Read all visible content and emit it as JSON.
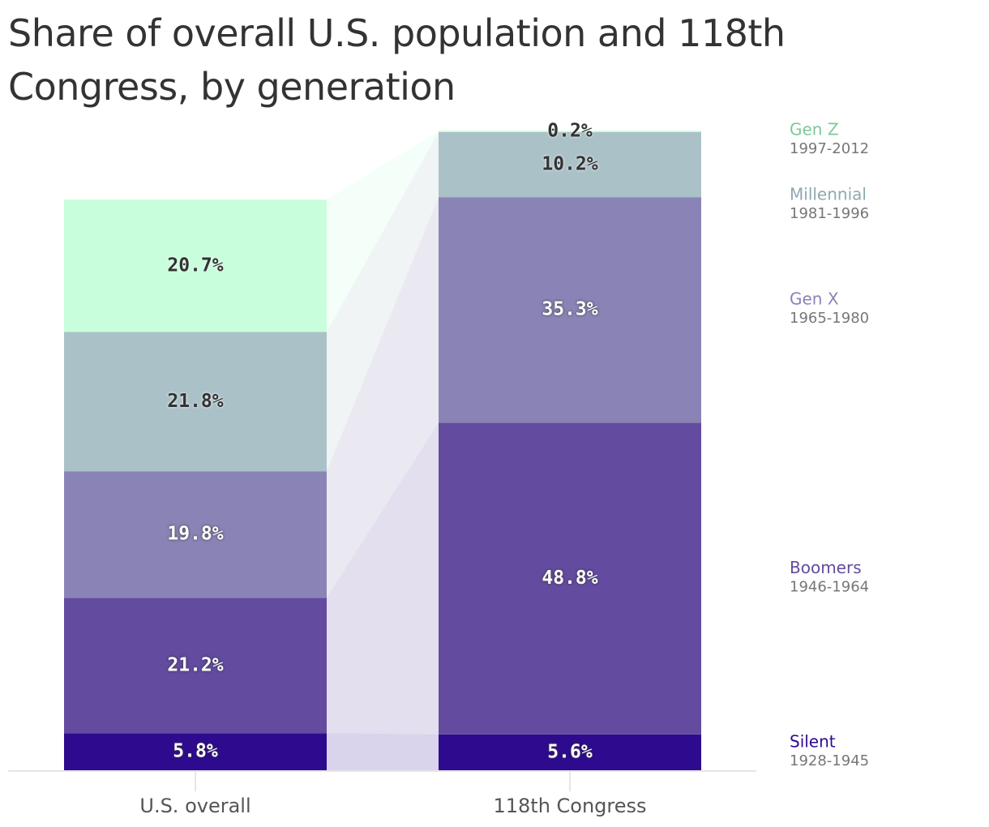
{
  "chart_data": {
    "type": "stacked_bar",
    "title": "Share of overall U.S. population and 118th Congress, by generation",
    "categories": [
      "U.S. overall",
      "118th Congress"
    ],
    "ylim": [
      0,
      100
    ],
    "series": [
      {
        "name": "Silent",
        "years": "1928-1945",
        "color": "#2e0b8e",
        "label_color": "#2e0b8e",
        "values": [
          5.8,
          5.6
        ],
        "value_labels": [
          "5.8%",
          "5.6%"
        ]
      },
      {
        "name": "Boomers",
        "years": "1946-1964",
        "color": "#634ba0",
        "label_color": "#634ba0",
        "values": [
          21.2,
          48.8
        ],
        "value_labels": [
          "21.2%",
          "48.8%"
        ]
      },
      {
        "name": "Gen X",
        "years": "1965-1980",
        "color": "#8a84b6",
        "label_color": "#8a84b6",
        "values": [
          19.8,
          35.3
        ],
        "value_labels": [
          "19.8%",
          "35.3%"
        ]
      },
      {
        "name": "Millennial",
        "years": "1981-1996",
        "color": "#aac1c8",
        "label_color": "#8fa8b0",
        "values": [
          21.8,
          10.2
        ],
        "value_labels": [
          "21.8%",
          "10.2%"
        ]
      },
      {
        "name": "Gen Z",
        "years": "1997-2012",
        "color": "#c8fedb",
        "label_color": "#7fc79a",
        "values": [
          20.7,
          0.2
        ],
        "value_labels": [
          "20.7%",
          "0.2%"
        ]
      }
    ]
  }
}
